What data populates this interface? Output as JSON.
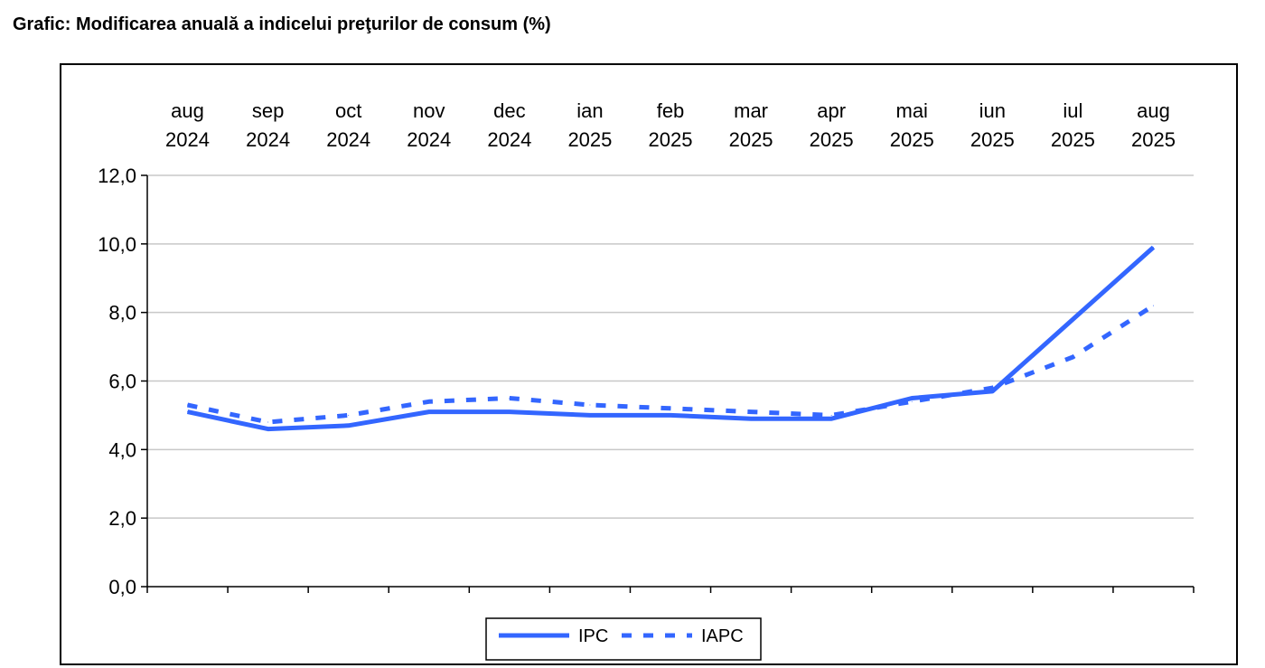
{
  "title": "Grafic: Modificarea anuală a indicelui preţurilor de consum (%)",
  "chart_data": {
    "type": "line",
    "title": "Grafic: Modificarea anuală a indicelui preţurilor de consum (%)",
    "xlabel": "",
    "ylabel": "",
    "categories": [
      [
        "aug",
        "2024"
      ],
      [
        "sep",
        "2024"
      ],
      [
        "oct",
        "2024"
      ],
      [
        "nov",
        "2024"
      ],
      [
        "dec",
        "2024"
      ],
      [
        "ian",
        "2025"
      ],
      [
        "feb",
        "2025"
      ],
      [
        "mar",
        "2025"
      ],
      [
        "apr",
        "2025"
      ],
      [
        "mai",
        "2025"
      ],
      [
        "iun",
        "2025"
      ],
      [
        "iul",
        "2025"
      ],
      [
        "aug",
        "2025"
      ]
    ],
    "ylim": [
      0,
      12
    ],
    "yticks": [
      "0,0",
      "2,0",
      "4,0",
      "6,0",
      "8,0",
      "10,0",
      "12,0"
    ],
    "ytick_values": [
      0,
      2,
      4,
      6,
      8,
      10,
      12
    ],
    "grid": true,
    "x_axis_position": "top",
    "legend_position": "bottom-center",
    "series": [
      {
        "name": "IPC",
        "style": "solid",
        "color": "#3366ff",
        "values": [
          5.1,
          4.6,
          4.7,
          5.1,
          5.1,
          5.0,
          5.0,
          4.9,
          4.9,
          5.5,
          5.7,
          7.8,
          9.9
        ]
      },
      {
        "name": "IAPC",
        "style": "dashed",
        "color": "#3366ff",
        "values": [
          5.3,
          4.8,
          5.0,
          5.4,
          5.5,
          5.3,
          5.2,
          5.1,
          5.0,
          5.4,
          5.8,
          6.7,
          8.2
        ]
      }
    ]
  }
}
